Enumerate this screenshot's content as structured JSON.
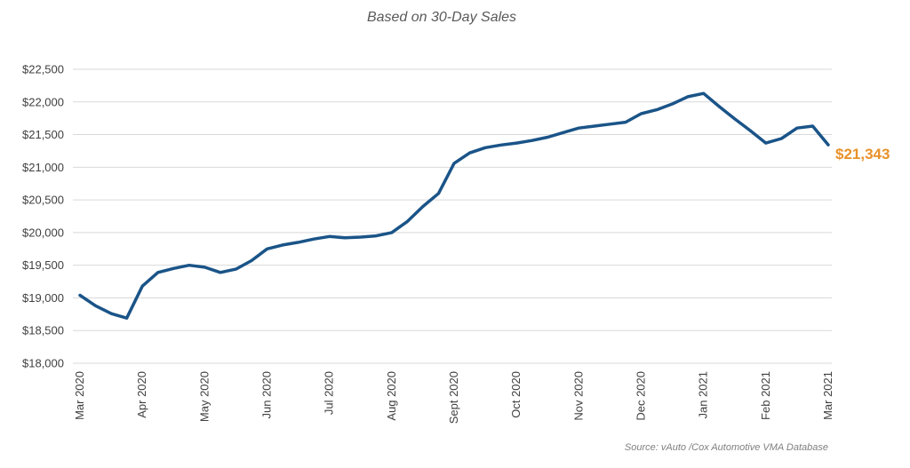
{
  "chart_data": {
    "type": "line",
    "subtitle": "Based on 30-Day Sales",
    "ylim": [
      18000,
      22500
    ],
    "yticks": [
      18000,
      18500,
      19000,
      19500,
      20000,
      20500,
      21000,
      21500,
      22000,
      22500
    ],
    "ytick_labels": [
      "$18,000",
      "$18,500",
      "$19,000",
      "$19,500",
      "$20,000",
      "$20,500",
      "$21,000",
      "$21,500",
      "$22,000",
      "$22,500"
    ],
    "xtick_labels": [
      "Mar 2020",
      "Apr 2020",
      "May 2020",
      "Jun 2020",
      "Jul 2020",
      "Aug 2020",
      "Sept 2020",
      "Oct 2020",
      "Nov 2020",
      "Dec 2020",
      "Jan 2021",
      "Feb 2021",
      "Mar 2021"
    ],
    "xlim": [
      0,
      12
    ],
    "grid": true,
    "line_color": "#1a5488",
    "end_label_color": "#e8912a",
    "series": [
      {
        "x": [
          0,
          0.25,
          0.5,
          0.75,
          1.0,
          1.25,
          1.5,
          1.75,
          2.0,
          2.25,
          2.5,
          2.75,
          3.0,
          3.25,
          3.5,
          3.75,
          4.0,
          4.25,
          4.5,
          4.75,
          5.0,
          5.25,
          5.5,
          5.75,
          6.0,
          6.25,
          6.5,
          6.75,
          7.0,
          7.25,
          7.5,
          7.75,
          8.0,
          8.25,
          8.5,
          8.75,
          9.0,
          9.25,
          9.5,
          9.75,
          10.0,
          10.25,
          10.5,
          10.75,
          11.0,
          11.25,
          11.5,
          11.75,
          12.0
        ],
        "values": [
          19040,
          18880,
          18760,
          18690,
          19180,
          19390,
          19450,
          19500,
          19470,
          19390,
          19440,
          19570,
          19750,
          19810,
          19850,
          19900,
          19940,
          19920,
          19930,
          19950,
          20000,
          20170,
          20400,
          20600,
          21060,
          21220,
          21300,
          21340,
          21370,
          21410,
          21460,
          21530,
          21600,
          21630,
          21660,
          21690,
          21820,
          21880,
          21970,
          22080,
          22130,
          21930,
          21740,
          21560,
          21370,
          21440,
          21600,
          21630,
          21343
        ]
      }
    ],
    "end_value_label": "$21,343",
    "source": "Source:  vAuto /Cox Automotive VMA Database"
  }
}
